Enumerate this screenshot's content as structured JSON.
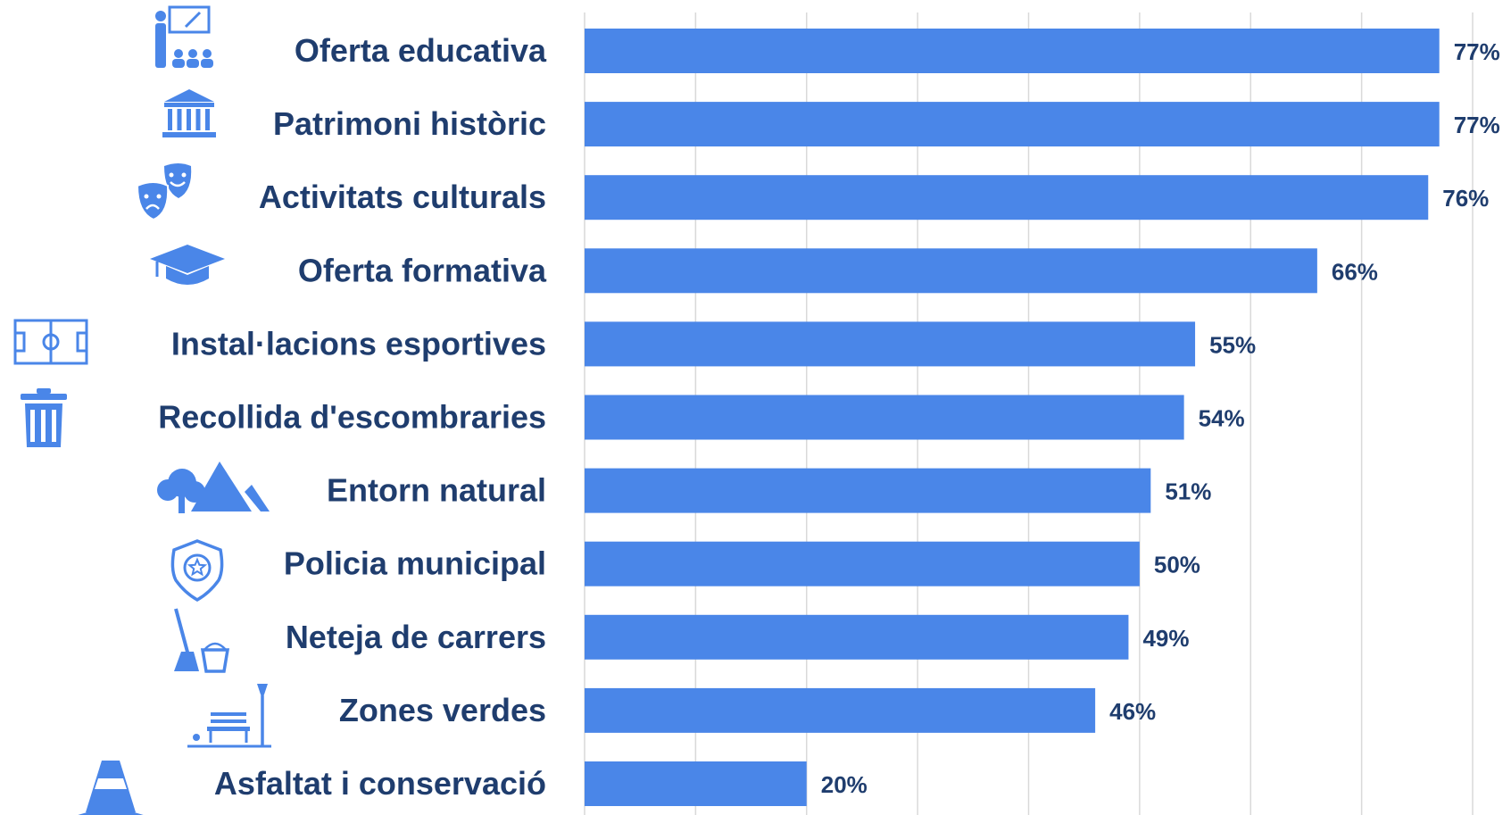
{
  "chart_data": {
    "type": "bar",
    "orientation": "horizontal",
    "categories": [
      "Oferta educativa",
      "Patrimoni històric",
      "Activitats culturals",
      "Oferta formativa",
      "Instal·lacions esportives",
      "Recollida d'escombraries",
      "Entorn natural",
      "Policia municipal",
      "Neteja de carrers",
      "Zones verdes",
      "Asfaltat i conservació"
    ],
    "values": [
      77,
      77,
      76,
      66,
      55,
      54,
      51,
      50,
      49,
      46,
      20
    ],
    "value_labels": [
      "77%",
      "77%",
      "76%",
      "66%",
      "55%",
      "54%",
      "51%",
      "50%",
      "49%",
      "46%",
      "20%"
    ],
    "icons": [
      "teacher-classroom-icon",
      "museum-building-icon",
      "theater-masks-icon",
      "graduation-cap-icon",
      "sports-field-icon",
      "trash-can-icon",
      "tree-mountains-icon",
      "police-badge-icon",
      "broom-bucket-icon",
      "park-bench-lamp-icon",
      "traffic-cone-icon"
    ],
    "xlim": [
      0,
      80
    ],
    "grid": true,
    "grid_step": 10,
    "title": "",
    "xlabel": "",
    "ylabel": "",
    "colors": {
      "bar": "#4a86e8",
      "text": "#1f3d6e",
      "icon": "#4a86e8",
      "grid": "#d9d9d9"
    }
  }
}
